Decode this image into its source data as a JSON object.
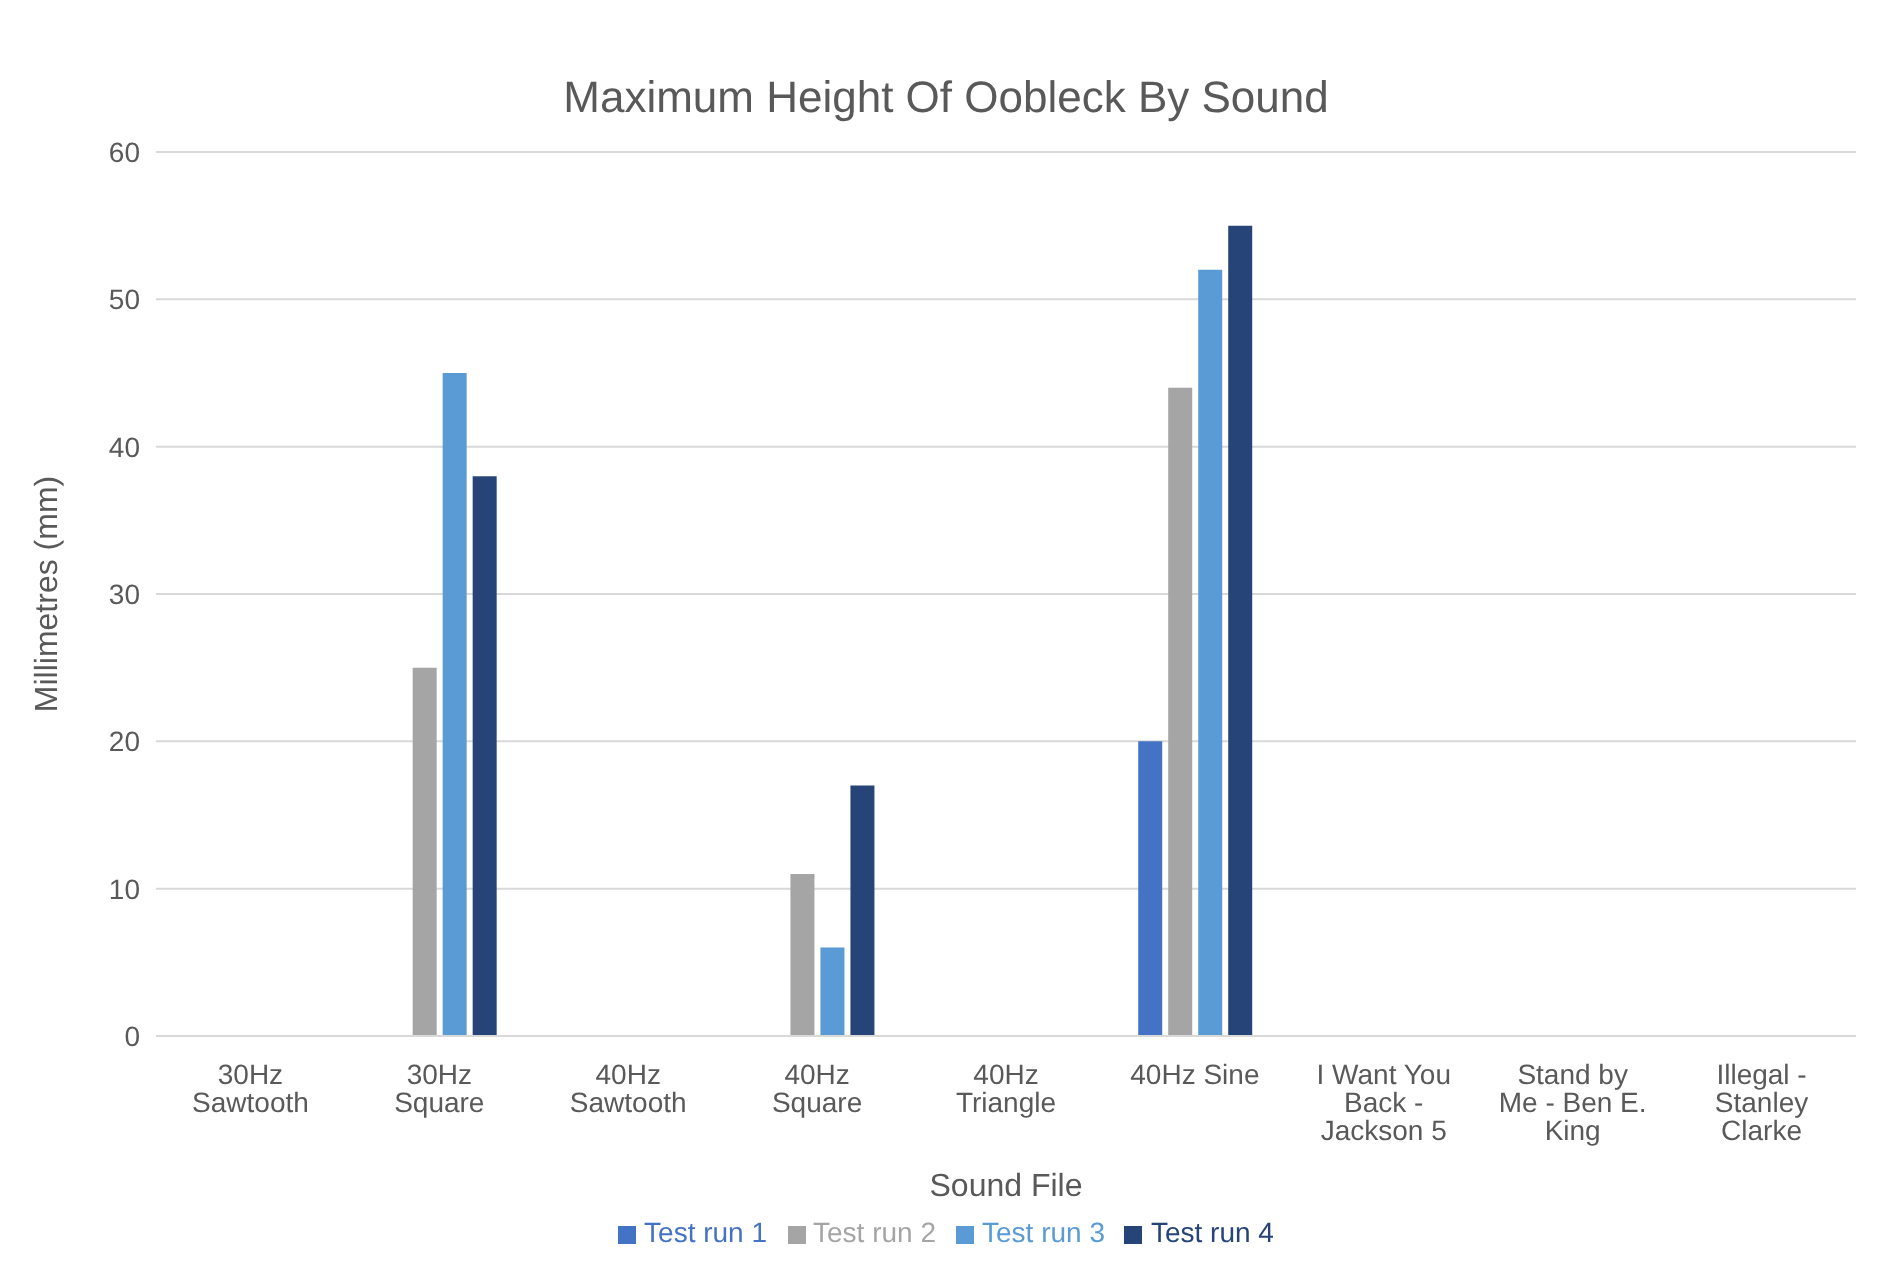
{
  "chart_data": {
    "type": "bar",
    "title": "Maximum Height Of Oobleck By Sound",
    "xlabel": "Sound File",
    "ylabel": "Millimetres (mm)",
    "categories": [
      "30Hz Sawtooth",
      "30Hz Square",
      "40Hz Sawtooth",
      "40Hz Square",
      "40Hz Triangle",
      "40Hz Sine",
      "I Want You Back - Jackson 5",
      "Stand by Me - Ben E. King",
      "Illegal - Stanley Clarke"
    ],
    "series": [
      {
        "name": "Test run 1",
        "color": "#4472c4",
        "values": [
          0,
          0,
          0,
          0,
          0,
          20,
          0,
          0,
          0
        ]
      },
      {
        "name": "Test run 2",
        "color": "#a5a5a5",
        "values": [
          0,
          25,
          0,
          11,
          0,
          44,
          0,
          0,
          0
        ]
      },
      {
        "name": "Test run 3",
        "color": "#5b9bd5",
        "values": [
          0,
          45,
          0,
          6,
          0,
          52,
          0,
          0,
          0
        ]
      },
      {
        "name": "Test run 4",
        "color": "#264478",
        "values": [
          0,
          38,
          0,
          17,
          0,
          55,
          0,
          0,
          0
        ]
      }
    ],
    "ylim": [
      0,
      60
    ],
    "yticks": [
      0,
      10,
      20,
      30,
      40,
      50,
      60
    ],
    "grid": "y",
    "legend": "bottom"
  }
}
